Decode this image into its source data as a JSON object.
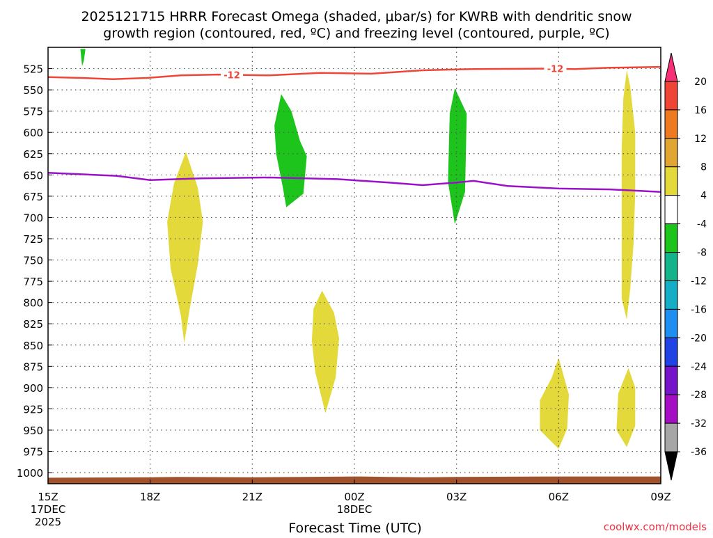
{
  "chart_data": {
    "type": "contour-timeheight",
    "title_line1": "2025121715 HRRR Forecast Omega (shaded, μbar/s) for KWRB with dendritic snow",
    "title_line2": "growth region (contoured, red, ºC) and freezing level (contoured, purple, ºC)",
    "xlabel": "Forecast Time (UTC)",
    "credit": "coolwx.com/models",
    "x_axis": {
      "range_hours": [
        0,
        18
      ],
      "ticks": [
        {
          "hour": 0,
          "label": "15Z",
          "label2": "17DEC",
          "label3": "2025"
        },
        {
          "hour": 3,
          "label": "18Z"
        },
        {
          "hour": 6,
          "label": "21Z"
        },
        {
          "hour": 9,
          "label": "00Z",
          "label2": "18DEC"
        },
        {
          "hour": 12,
          "label": "03Z"
        },
        {
          "hour": 15,
          "label": "06Z"
        },
        {
          "hour": 18,
          "label": "09Z"
        }
      ]
    },
    "y_axis": {
      "unit": "hPa",
      "range": [
        1013,
        500
      ],
      "ticks": [
        525,
        550,
        575,
        600,
        625,
        650,
        675,
        700,
        725,
        750,
        775,
        800,
        825,
        850,
        875,
        900,
        925,
        950,
        975,
        1000
      ]
    },
    "colorbar": {
      "levels": [
        "20",
        "16",
        "12",
        "8",
        "4",
        "-4",
        "-8",
        "-12",
        "-16",
        "-20",
        "-24",
        "-28",
        "-32",
        "-36"
      ],
      "colors": [
        "#f72f76",
        "#ef4536",
        "#ee7a1f",
        "#e1a532",
        "#e3d93b",
        "#ffffff",
        "#1cc41c",
        "#14b38a",
        "#16aec5",
        "#1e8ff0",
        "#2143e3",
        "#7514c9",
        "#a50fc4",
        "#a6a6a6",
        "#000000"
      ]
    },
    "colors": {
      "snow_growth_contour": "#ef4536",
      "freezing_level_contour": "#9a11c9",
      "terrain": "#a0522d",
      "yellow_shade": "#e3d93b",
      "green_shade": "#1cc41c"
    },
    "snow_growth_contour": {
      "label": "-12",
      "points": [
        [
          0,
          535
        ],
        [
          1.0,
          536
        ],
        [
          1.9,
          537.5
        ],
        [
          2.9,
          536
        ],
        [
          3.9,
          533
        ],
        [
          5.0,
          532
        ],
        [
          6.5,
          533
        ],
        [
          8.0,
          530
        ],
        [
          9.5,
          531
        ],
        [
          11.0,
          527
        ],
        [
          12.5,
          525.5
        ],
        [
          14.5,
          525
        ],
        [
          15.5,
          525.5
        ],
        [
          16.5,
          524
        ],
        [
          18.0,
          523
        ]
      ]
    },
    "freezing_level_contour": {
      "points": [
        [
          0,
          647.5
        ],
        [
          2.0,
          651
        ],
        [
          3.0,
          656
        ],
        [
          4.5,
          654
        ],
        [
          6.5,
          653
        ],
        [
          8.5,
          655
        ],
        [
          10.0,
          659
        ],
        [
          11.0,
          662
        ],
        [
          12.0,
          659
        ],
        [
          12.5,
          657
        ],
        [
          13.5,
          663
        ],
        [
          15.0,
          666
        ],
        [
          16.5,
          667
        ],
        [
          18.0,
          670
        ]
      ]
    },
    "omega_regions": [
      {
        "level": "-8",
        "points": [
          [
            0.95,
            502
          ],
          [
            1.1,
            502
          ],
          [
            1.05,
            516
          ],
          [
            1.0,
            522
          ]
        ]
      },
      {
        "level": "4",
        "points": [
          [
            4.05,
            623
          ],
          [
            4.4,
            665
          ],
          [
            4.55,
            705
          ],
          [
            4.4,
            755
          ],
          [
            4.15,
            810
          ],
          [
            4.0,
            848
          ],
          [
            3.9,
            815
          ],
          [
            3.6,
            760
          ],
          [
            3.5,
            705
          ],
          [
            3.7,
            660
          ]
        ]
      },
      {
        "level": "-8",
        "points": [
          [
            6.85,
            555
          ],
          [
            7.15,
            575
          ],
          [
            7.4,
            610
          ],
          [
            7.6,
            628
          ],
          [
            7.5,
            672
          ],
          [
            7.0,
            688
          ],
          [
            6.9,
            665
          ],
          [
            6.7,
            625
          ],
          [
            6.65,
            592
          ]
        ]
      },
      {
        "level": "4",
        "points": [
          [
            8.05,
            786
          ],
          [
            8.4,
            812
          ],
          [
            8.55,
            842
          ],
          [
            8.45,
            888
          ],
          [
            8.15,
            930
          ],
          [
            7.85,
            882
          ],
          [
            7.75,
            845
          ],
          [
            7.8,
            807
          ]
        ]
      },
      {
        "level": "-8",
        "points": [
          [
            11.95,
            548
          ],
          [
            12.3,
            578
          ],
          [
            12.25,
            670
          ],
          [
            11.95,
            708
          ],
          [
            11.75,
            658
          ],
          [
            11.8,
            578
          ]
        ]
      },
      {
        "level": "4",
        "points": [
          [
            15.0,
            865
          ],
          [
            15.3,
            908
          ],
          [
            15.25,
            948
          ],
          [
            15.0,
            972
          ],
          [
            14.45,
            950
          ],
          [
            14.45,
            915
          ],
          [
            14.8,
            888
          ]
        ]
      },
      {
        "level": "4",
        "points": [
          [
            17.0,
            527
          ],
          [
            17.1,
            545
          ],
          [
            17.25,
            600
          ],
          [
            17.25,
            670
          ],
          [
            17.2,
            730
          ],
          [
            17.1,
            785
          ],
          [
            17.0,
            820
          ],
          [
            16.85,
            795
          ],
          [
            16.85,
            710
          ],
          [
            16.85,
            620
          ],
          [
            16.9,
            560
          ]
        ]
      },
      {
        "level": "4",
        "points": [
          [
            17.05,
            877
          ],
          [
            17.25,
            900
          ],
          [
            17.25,
            945
          ],
          [
            17.0,
            970
          ],
          [
            16.7,
            950
          ],
          [
            16.75,
            907
          ]
        ]
      }
    ],
    "terrain_top": [
      [
        0,
        1006
      ],
      [
        3.0,
        1005.5
      ],
      [
        3.8,
        1005
      ],
      [
        6.0,
        1005.5
      ],
      [
        7.5,
        1005
      ],
      [
        9.2,
        1004.5
      ],
      [
        10.0,
        1005
      ],
      [
        11.0,
        1005.5
      ],
      [
        12.0,
        1005
      ],
      [
        15.0,
        1004.5
      ],
      [
        18.0,
        1004.5
      ]
    ]
  }
}
